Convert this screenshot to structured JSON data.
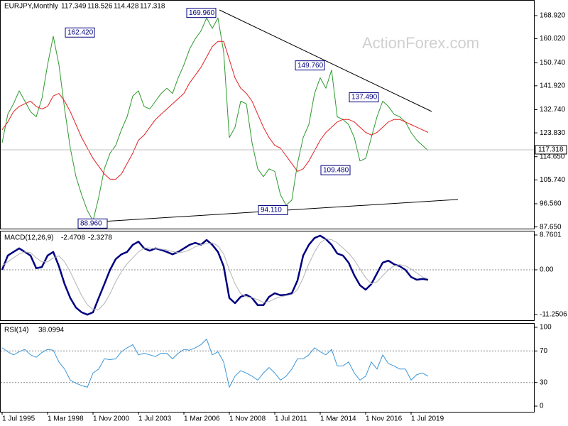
{
  "chart_data": [
    {
      "type": "line",
      "title": "EURJPY,Monthly",
      "ohlc": [
        117.349,
        118.526,
        114.428,
        117.318
      ],
      "watermark": "ActionForex.com",
      "ylim": [
        87.0,
        174.92
      ],
      "yticks": [
        {
          "value": 168.92,
          "label": "168.920"
        },
        {
          "value": 160.02,
          "label": "160.020"
        },
        {
          "value": 150.74,
          "label": "150.740"
        },
        {
          "value": 141.92,
          "label": "141.920"
        },
        {
          "value": 132.74,
          "label": "132.740"
        },
        {
          "value": 123.83,
          "label": "123.830"
        },
        {
          "value": 114.65,
          "label": "114.650"
        },
        {
          "value": 105.74,
          "label": "105.740"
        },
        {
          "value": 96.56,
          "label": "96.560"
        },
        {
          "value": 87.65,
          "label": "87.650"
        }
      ],
      "series": [
        {
          "color": "#2e9a2e",
          "values": [
            120,
            131,
            135,
            140,
            136,
            132,
            130,
            137,
            150,
            161,
            150,
            133,
            118,
            107,
            100,
            94,
            90,
            99,
            110,
            116,
            119,
            125,
            130,
            138,
            140,
            134,
            133,
            136,
            139,
            141,
            139,
            145,
            150,
            156,
            160,
            163,
            168,
            164,
            168,
            155,
            122,
            126,
            136,
            135,
            120,
            110,
            107,
            110,
            109,
            100,
            96,
            98,
            112,
            122,
            127,
            139,
            145,
            141,
            148,
            130,
            129,
            127,
            122,
            113,
            114,
            122,
            130,
            136,
            134,
            131,
            130,
            128,
            124,
            121,
            119,
            117
          ]
        },
        {
          "color": "#e02020",
          "values": [
            125,
            128,
            132,
            134,
            135,
            136,
            134,
            133,
            134,
            138,
            139,
            136,
            132,
            127,
            122,
            118,
            114,
            111,
            108,
            106,
            106,
            108,
            112,
            116,
            121,
            123,
            126,
            129,
            131,
            133,
            135,
            137,
            139,
            143,
            146,
            149,
            153,
            157,
            159,
            159,
            152,
            145,
            141,
            139,
            136,
            131,
            126,
            122,
            119,
            118,
            115,
            112,
            109,
            110,
            113,
            117,
            121,
            124,
            126,
            128,
            129,
            129,
            128,
            126,
            124,
            123,
            124,
            126,
            128,
            129,
            129,
            128,
            127,
            126,
            125,
            124
          ]
        }
      ],
      "annotations": [
        {
          "value": 162.42,
          "label": "162.420"
        },
        {
          "value": 169.96,
          "label": "169.960"
        },
        {
          "value": 149.76,
          "label": "149.760"
        },
        {
          "value": 137.49,
          "label": "137.490"
        },
        {
          "value": 109.48,
          "label": "109.480"
        },
        {
          "value": 94.11,
          "label": "94.110"
        },
        {
          "value": 88.96,
          "label": "88.960"
        }
      ]
    },
    {
      "type": "line",
      "title": "MACD(12,26,9)",
      "readout": [
        -2.4708,
        -2.3278
      ],
      "ylim": [
        -12.69,
        9.83
      ],
      "yticks": [
        8.7601,
        {
          "value": 0,
          "label": "0.00"
        },
        -11.2506
      ],
      "series": [
        {
          "color": "#000080",
          "values": [
            0,
            3.6,
            4.5,
            5.4,
            4.5,
            3.6,
            0.4,
            0.7,
            3.6,
            4.5,
            0.9,
            -3.6,
            -7.1,
            -9.5,
            -10.7,
            -11.3,
            -10.7,
            -7.1,
            -3.6,
            0,
            2.7,
            3.9,
            4.5,
            6.3,
            7.1,
            5.4,
            4.8,
            5.4,
            5.0,
            4.5,
            3.9,
            4.5,
            5.4,
            6.3,
            6.8,
            6.3,
            7.5,
            6.3,
            4.5,
            0.9,
            -7.1,
            -8.4,
            -6.8,
            -6.3,
            -7.1,
            -8.9,
            -8.9,
            -6.8,
            -5.9,
            -6.4,
            -6.3,
            -5.9,
            -2.7,
            3.6,
            6.3,
            8.0,
            8.6,
            7.7,
            6.3,
            4.1,
            3.6,
            1.8,
            -1.4,
            -3.9,
            -5.0,
            -3.6,
            -0.9,
            1.8,
            2.3,
            1.4,
            0.9,
            0,
            -1.8,
            -2.5,
            -2.3,
            -2.5
          ]
        },
        {
          "color": "#b4b4b4",
          "values": [
            1.0,
            2.0,
            3.0,
            4.0,
            4.5,
            4.3,
            3.0,
            2.0,
            2.0,
            3.0,
            3.5,
            2.0,
            -0.5,
            -3.5,
            -6.5,
            -8.8,
            -10.0,
            -10.0,
            -8.5,
            -6.0,
            -3.0,
            -0.5,
            1.5,
            3.0,
            4.5,
            5.5,
            5.5,
            5.3,
            5.2,
            5.0,
            4.6,
            4.3,
            4.5,
            5.0,
            5.8,
            6.3,
            6.6,
            6.8,
            6.0,
            4.0,
            0.0,
            -3.5,
            -6.0,
            -6.8,
            -7.0,
            -7.5,
            -8.2,
            -8.0,
            -7.3,
            -6.8,
            -6.5,
            -6.2,
            -5.0,
            -2.0,
            1.5,
            4.5,
            6.8,
            7.8,
            7.6,
            6.8,
            5.5,
            4.2,
            2.5,
            0.2,
            -2.0,
            -3.5,
            -3.0,
            -1.5,
            0.0,
            1.0,
            1.3,
            1.0,
            0.2,
            -0.8,
            -1.8,
            -2.3
          ]
        }
      ]
    },
    {
      "type": "line",
      "title": "RSI(14)",
      "readout": [
        38.0994
      ],
      "ylim": [
        -7.2,
        105.4
      ],
      "yticks": [
        100,
        70,
        30,
        0
      ],
      "levels": [
        70,
        30
      ],
      "categories": [
        "1 Jul 1995",
        null,
        null,
        null,
        null,
        null,
        null,
        null,
        "1 Mar 1998",
        null,
        null,
        null,
        null,
        null,
        null,
        null,
        "1 Nov 2000",
        null,
        null,
        null,
        null,
        null,
        null,
        null,
        "1 Jul 2003",
        null,
        null,
        null,
        null,
        null,
        null,
        null,
        "1 Mar 2006",
        null,
        null,
        null,
        null,
        null,
        null,
        null,
        "1 Nov 2008",
        null,
        null,
        null,
        null,
        null,
        null,
        null,
        "1 Jul 2011",
        null,
        null,
        null,
        null,
        null,
        null,
        null,
        "1 Mar 2014",
        null,
        null,
        null,
        null,
        null,
        null,
        null,
        "1 Nov 2016",
        null,
        null,
        null,
        null,
        null,
        null,
        null,
        "1 Jul 2019",
        null,
        null,
        null
      ],
      "series": [
        {
          "color": "#3b96d8",
          "values": [
            74,
            69,
            65,
            69,
            72,
            65,
            62,
            68,
            72,
            71,
            56,
            47,
            33,
            29,
            26,
            24,
            42,
            47,
            60,
            59,
            60,
            69,
            74,
            78,
            65,
            67,
            65,
            63,
            67,
            67,
            60,
            67,
            72,
            71,
            74,
            78,
            85,
            65,
            69,
            56,
            24,
            38,
            45,
            42,
            38,
            33,
            42,
            49,
            42,
            33,
            38,
            47,
            60,
            60,
            65,
            74,
            69,
            65,
            72,
            51,
            51,
            56,
            42,
            33,
            38,
            56,
            47,
            65,
            54,
            51,
            47,
            47,
            33,
            40,
            42,
            38
          ]
        }
      ]
    }
  ]
}
